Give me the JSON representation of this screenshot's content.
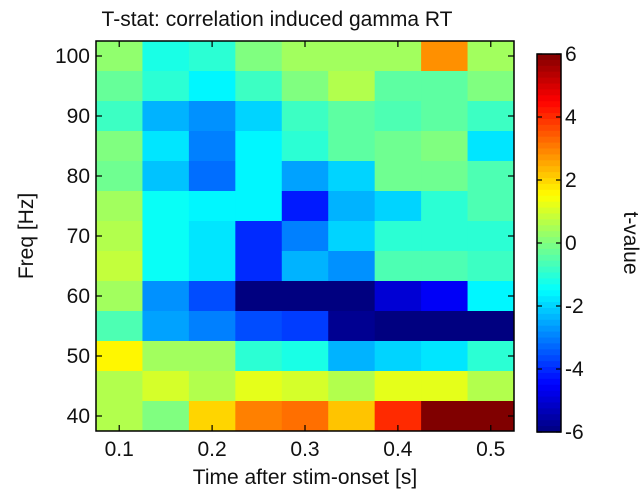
{
  "chart_data": {
    "type": "heatmap",
    "title": "T-stat: correlation induced gamma RT",
    "xlabel": "Time after stim-onset [s]",
    "ylabel": "Freq [Hz]",
    "colorbar_label": "t-value",
    "colormap": "jet",
    "clim": [
      -6,
      6
    ],
    "xlim": [
      0.075,
      0.525
    ],
    "ylim": [
      37.5,
      102.5
    ],
    "x": [
      0.1,
      0.15,
      0.2,
      0.25,
      0.3,
      0.35,
      0.4,
      0.45,
      0.5
    ],
    "y": [
      100,
      95,
      90,
      85,
      80,
      75,
      70,
      65,
      60,
      55,
      50,
      45,
      40
    ],
    "x_ticks": [
      0.1,
      0.2,
      0.3,
      0.4,
      0.5
    ],
    "x_tick_labels": [
      "0.1",
      "0.2",
      "0.3",
      "0.4",
      "0.5"
    ],
    "y_ticks": [
      100,
      90,
      80,
      70,
      60,
      50,
      40
    ],
    "y_tick_labels": [
      "100",
      "90",
      "80",
      "70",
      "60",
      "50",
      "40"
    ],
    "colorbar_ticks": [
      6,
      4,
      2,
      0,
      -2,
      -4,
      -6
    ],
    "colorbar_tick_labels": [
      "6",
      "4",
      "2",
      "0",
      "-2",
      "-4",
      "-6"
    ],
    "values": [
      [
        0.2,
        -1.2,
        -1.0,
        0.0,
        0.4,
        0.4,
        0.4,
        2.8,
        0.4
      ],
      [
        -0.3,
        -1.0,
        -1.6,
        -0.8,
        0.0,
        0.6,
        -0.4,
        -0.4,
        0.0
      ],
      [
        -0.8,
        -2.4,
        -2.8,
        -2.0,
        -0.8,
        -0.4,
        -0.6,
        -0.4,
        -0.8
      ],
      [
        0.0,
        -1.8,
        -3.0,
        -1.6,
        -1.0,
        -0.4,
        -0.2,
        0.0,
        -1.8
      ],
      [
        -0.2,
        -2.2,
        -3.2,
        -1.6,
        -2.6,
        -2.0,
        -0.2,
        -0.2,
        -0.6
      ],
      [
        0.4,
        -1.4,
        -1.6,
        -1.6,
        -4.2,
        -2.4,
        -2.0,
        -1.0,
        -0.6
      ],
      [
        0.6,
        -1.4,
        -1.8,
        -4.0,
        -3.0,
        -2.0,
        -1.0,
        -1.0,
        -1.0
      ],
      [
        0.8,
        -1.4,
        -1.8,
        -4.0,
        -2.4,
        -2.8,
        -0.6,
        -0.6,
        -0.8
      ],
      [
        0.4,
        -2.8,
        -3.6,
        -6.2,
        -6.2,
        -6.2,
        -5.0,
        -4.6,
        -1.6
      ],
      [
        -0.6,
        -2.6,
        -3.0,
        -3.6,
        -3.8,
        -5.8,
        -6.2,
        -6.2,
        -6.2
      ],
      [
        1.6,
        0.4,
        0.4,
        -1.0,
        -1.2,
        -2.4,
        -2.0,
        -1.8,
        -1.0
      ],
      [
        0.6,
        1.0,
        0.6,
        1.2,
        1.0,
        0.6,
        1.2,
        1.2,
        0.6
      ],
      [
        0.6,
        0.0,
        2.0,
        3.0,
        3.2,
        2.2,
        4.0,
        6.8,
        6.8
      ]
    ]
  }
}
